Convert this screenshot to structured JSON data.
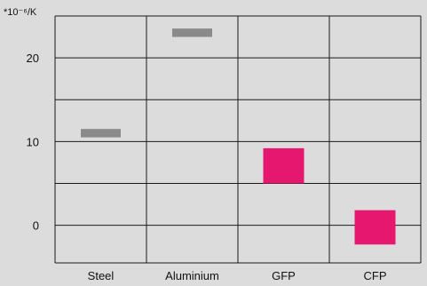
{
  "colors": {
    "background": "#dcdcdc",
    "grid": "#1a1a1a",
    "text": "#111111",
    "metal_range": "#8a8a8a",
    "composite_range": "#e5176f"
  },
  "chart_data": {
    "type": "bar",
    "ylabel": "*10⁻⁶/K",
    "ylim": [
      -4.5,
      25
    ],
    "yticks": [
      0,
      10,
      20
    ],
    "grid": true,
    "categories": [
      "Steel",
      "Aluminium",
      "GFP",
      "CFP"
    ],
    "ranges": [
      {
        "category": "Steel",
        "low": 10.5,
        "high": 11.5,
        "color_key": "metal_range"
      },
      {
        "category": "Aluminium",
        "low": 22.5,
        "high": 23.5,
        "color_key": "metal_range"
      },
      {
        "category": "GFP",
        "low": 5.0,
        "high": 9.2,
        "color_key": "composite_range"
      },
      {
        "category": "CFP",
        "low": -2.3,
        "high": 1.8,
        "color_key": "composite_range"
      }
    ]
  }
}
